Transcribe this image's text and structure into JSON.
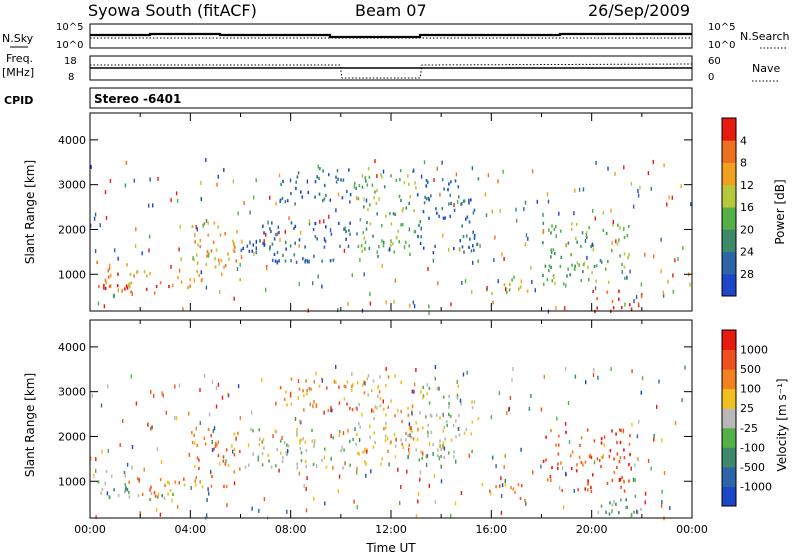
{
  "header": {
    "station": "Syowa South (fitACF)",
    "beam": "Beam 07",
    "date": "26/Sep/2009"
  },
  "top_panels": {
    "nsky_label": "N.Sky",
    "nsearch_label": "N.Search",
    "nsky_ticks": [
      "10^5",
      "10^0"
    ],
    "nsearch_ticks": [
      "10^5",
      "10^0"
    ],
    "freq_label_1": "Freq.",
    "freq_label_2": "[MHz]",
    "nave_label": "Nave",
    "freq_ticks": [
      "18",
      "8"
    ],
    "nave_ticks": [
      "60",
      "0"
    ],
    "cpid_label": "CPID",
    "cpid_value": "Stereo -6401"
  },
  "chart_data": [
    {
      "type": "heatmap",
      "name": "power",
      "ylabel": "Slant Range [km]",
      "xlabel": "",
      "ylim": [
        180,
        4600
      ],
      "xlim": [
        0,
        24
      ],
      "ytick_labels": [
        "1000",
        "2000",
        "3000",
        "4000"
      ],
      "colorbar_label": "Power [dB]",
      "colorbar_ticks": [
        "4",
        "8",
        "12",
        "16",
        "20",
        "24",
        "28"
      ],
      "colorbar_colors": [
        "#1e46c8",
        "#2a66a8",
        "#3c8a6a",
        "#55b048",
        "#b8c83c",
        "#f0a020",
        "#f07020",
        "#e81a10"
      ],
      "echo_regions": [
        {
          "t0": 0.2,
          "t1": 1.6,
          "r0": 650,
          "r1": 1300,
          "level": 6
        },
        {
          "t0": 0.4,
          "t1": 3.5,
          "r0": 600,
          "r1": 800,
          "level": 7
        },
        {
          "t0": 1.5,
          "t1": 4.5,
          "r0": 700,
          "r1": 1100,
          "level": 5
        },
        {
          "t0": 4.0,
          "t1": 6.0,
          "r0": 900,
          "r1": 2200,
          "level": 5
        },
        {
          "t0": 6.0,
          "t1": 10.5,
          "r0": 1300,
          "r1": 2200,
          "level": 1
        },
        {
          "t0": 7.5,
          "t1": 10.5,
          "r0": 2600,
          "r1": 3400,
          "level": 1
        },
        {
          "t0": 10.5,
          "t1": 13.0,
          "r0": 1400,
          "r1": 3400,
          "level": 3
        },
        {
          "t0": 13.0,
          "t1": 15.5,
          "r0": 1500,
          "r1": 3200,
          "level": 1
        },
        {
          "t0": 15.5,
          "t1": 17.5,
          "r0": 600,
          "r1": 1000,
          "level": 4
        },
        {
          "t0": 18.0,
          "t1": 21.5,
          "r0": 800,
          "r1": 2200,
          "level": 3
        },
        {
          "t0": 20.0,
          "t1": 22.0,
          "r0": 200,
          "r1": 700,
          "level": 7
        }
      ]
    },
    {
      "type": "heatmap",
      "name": "velocity",
      "ylabel": "Slant Range [km]",
      "xlabel": "Time UT",
      "ylim": [
        180,
        4600
      ],
      "xlim": [
        0,
        24
      ],
      "xtick_labels": [
        "00:00",
        "04:00",
        "08:00",
        "12:00",
        "16:00",
        "20:00",
        "00:00"
      ],
      "ytick_labels": [
        "1000",
        "2000",
        "3000",
        "4000"
      ],
      "colorbar_label": "Velocity [m s⁻¹]",
      "colorbar_ticks": [
        "1000",
        "500",
        "100",
        "25",
        "-25",
        "-100",
        "-500",
        "-1000"
      ],
      "colorbar_colors": [
        "#1e46c8",
        "#2a66a8",
        "#3c8a6a",
        "#55b048",
        "#b8b8b8",
        "#f0c020",
        "#f08020",
        "#f05020",
        "#e81a10"
      ],
      "echo_regions": [
        {
          "t0": 0.2,
          "t1": 1.6,
          "r0": 650,
          "r1": 1300,
          "level": 3
        },
        {
          "t0": 0.4,
          "t1": 3.5,
          "r0": 600,
          "r1": 800,
          "level": 3
        },
        {
          "t0": 1.5,
          "t1": 4.5,
          "r0": 700,
          "r1": 1100,
          "level": 6
        },
        {
          "t0": 4.0,
          "t1": 6.0,
          "r0": 900,
          "r1": 2200,
          "level": 6
        },
        {
          "t0": 6.0,
          "t1": 10.5,
          "r0": 1300,
          "r1": 2200,
          "level": 4
        },
        {
          "t0": 7.5,
          "t1": 10.5,
          "r0": 2600,
          "r1": 3400,
          "level": 6
        },
        {
          "t0": 10.5,
          "t1": 13.0,
          "r0": 1400,
          "r1": 3400,
          "level": 5
        },
        {
          "t0": 13.0,
          "t1": 15.5,
          "r0": 1500,
          "r1": 3200,
          "level": 4
        },
        {
          "t0": 15.5,
          "t1": 17.5,
          "r0": 600,
          "r1": 1000,
          "level": 6
        },
        {
          "t0": 18.0,
          "t1": 21.5,
          "r0": 800,
          "r1": 2200,
          "level": 7
        },
        {
          "t0": 20.0,
          "t1": 22.0,
          "r0": 200,
          "r1": 700,
          "level": 3
        }
      ]
    }
  ]
}
